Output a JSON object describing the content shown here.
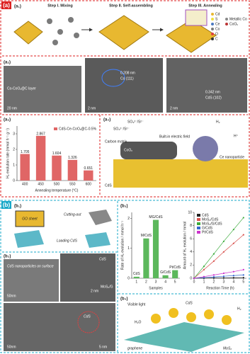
{
  "panel_a": {
    "label": "(a)",
    "a1": {
      "label": "(a₁)",
      "steps": [
        "Step I. Mixing",
        "Step II. Self-assembling",
        "Step III. Annealing"
      ],
      "legend": [
        "Cd",
        "S",
        "Ce",
        "Co",
        "O",
        "C"
      ],
      "legend2": [
        "Metallic Co",
        "CoOₓ"
      ]
    },
    "a2": {
      "label": "(a₂)",
      "texts": [
        "Co-CoOₓ@C layer",
        "20 nm",
        "0.208 nm",
        "Co (111)",
        "2 nm",
        "0.342 nm",
        "CdS (102)",
        "2 nm"
      ]
    },
    "a3": {
      "label": "(a₃)"
    },
    "a4": {
      "label": "(a₄)",
      "texts": [
        "SO₃²⁻/S²⁻",
        "SO₄²⁻/S²⁻",
        "H₂",
        "H⁺",
        "Carbon matrix",
        "Built-in electric field",
        "CoOₓ",
        "Ce nanoparticle",
        "CdS"
      ]
    }
  },
  "panel_b": {
    "label": "(b)",
    "b1": {
      "label": "(b₁)",
      "texts": [
        "GO sheet",
        "Cutting-out",
        "Loading CdS"
      ]
    },
    "b2": {
      "label": "(b₂)",
      "texts": [
        "CdS nanoparticles on surface",
        "50nm",
        "CdS",
        "2 nm",
        "MoS₂/G",
        "CdS",
        "50nm",
        "5 nm"
      ]
    },
    "b3": {
      "label": "(b₃)"
    },
    "b4": {
      "label": "(b₄)",
      "texts": [
        "Visible light",
        "CdS",
        "graphene",
        "MoS₂",
        "H₂O",
        "H₂"
      ]
    }
  },
  "chart_data": [
    {
      "type": "bar",
      "xlabel": "Annealing temperature (°C)",
      "ylabel": "H₂ evolution rate (mmol h⁻¹ g⁻¹)",
      "categories": [
        "400",
        "450",
        "500",
        "550",
        "600"
      ],
      "series": [
        {
          "name": "CdS-Ce-CoOₓ@C-0.5%",
          "color": "#e06666",
          "values": [
            1.705,
            2.867,
            1.604,
            1.326,
            0.651
          ]
        }
      ],
      "ylim": [
        0,
        3.5
      ],
      "yticks": [
        0,
        1,
        2,
        3
      ],
      "legend": "upper right",
      "show_values": true
    },
    {
      "type": "bar",
      "xlabel": "Samples",
      "ylabel": "Rate of H₂ evolution / mmol h⁻¹",
      "categories": [
        "1",
        "2",
        "3",
        "4",
        "5"
      ],
      "series": [
        {
          "name": null,
          "color": "#5cb85c",
          "values": [
            0.05,
            1.33,
            1.95,
            0.1,
            0.27
          ]
        }
      ],
      "bar_labels": [
        "CdS",
        "M/CdS",
        "MG/CdS",
        "G/CdS",
        "Pt/CdS"
      ],
      "ylim": [
        0,
        2.2
      ],
      "yticks": [
        0,
        1,
        2
      ],
      "show_values": false
    },
    {
      "type": "line",
      "xlabel": "Reaction Time (h)",
      "ylabel": "Amount of H₂ evolution / mmol",
      "x": [
        0,
        1,
        2,
        3,
        4,
        5
      ],
      "xlim": [
        0,
        5.3
      ],
      "xticks": [
        0,
        1,
        2,
        3,
        4,
        5
      ],
      "ylim": [
        0,
        10
      ],
      "yticks": [
        0,
        2,
        4,
        6,
        8,
        10
      ],
      "legend": "upper left",
      "series": [
        {
          "name": "CdS",
          "color": "#222222",
          "values": [
            0,
            0.02,
            0.04,
            0.06,
            0.08,
            0.1
          ]
        },
        {
          "name": "MoS₂/CdS",
          "color": "#d9534f",
          "values": [
            0,
            1.3,
            2.6,
            4,
            5.3,
            6.6
          ]
        },
        {
          "name": "MoS₂/G/CdS",
          "color": "#3cab3c",
          "values": [
            0,
            1.8,
            3.7,
            5.6,
            7.4,
            9.2
          ]
        },
        {
          "name": "G/CdS",
          "color": "#3366cc",
          "values": [
            0,
            0.1,
            0.2,
            0.3,
            0.4,
            0.5
          ]
        },
        {
          "name": "Pt/CdS",
          "color": "#cc33cc",
          "values": [
            0,
            0.25,
            0.5,
            0.75,
            1.0,
            1.3
          ]
        }
      ]
    }
  ]
}
